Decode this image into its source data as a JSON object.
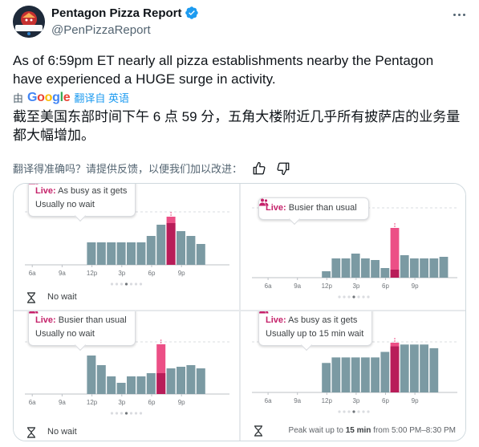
{
  "author": {
    "name": "Pentagon Pizza Report",
    "handle": "@PenPizzaReport",
    "verified": true,
    "avatar_text": "PENTAGON"
  },
  "tweet": {
    "text": "As of 6:59pm ET nearly all pizza establishments nearby the Pentagon have experienced a HUGE surge in activity.",
    "translated_by_prefix": "由",
    "translated_by_suffix": "翻译自 英语",
    "translation": "截至美国东部时间下午 6 点 59 分，五角大楼附近几乎所有披萨店的业务量都大幅增加。",
    "feedback": "翻译得准确吗？请提供反馈，以便我们加以改进："
  },
  "colors": {
    "bar": "#7b9aa3",
    "live": "#ec4f86",
    "live_dark": "#b81d59",
    "live_text": "#c5226a",
    "blue": "#1d9bf0"
  },
  "icons": [
    "more-icon",
    "verified-icon",
    "thumbs-up-icon",
    "thumbs-down-icon",
    "people-icon",
    "hourglass-icon"
  ],
  "panels": [
    {
      "id": "tl",
      "live_label": "Live:",
      "live_status": "As busy as it gets",
      "subtitle": "Usually no wait",
      "footer": "No wait",
      "peak": null,
      "time_labels": [
        "6a",
        "9a",
        "12p",
        "3p",
        "6p",
        "9p"
      ],
      "chart_data": {
        "type": "bar",
        "hours": [
          6,
          7,
          8,
          9,
          10,
          11,
          12,
          13,
          14,
          15,
          16,
          17,
          18,
          19,
          20,
          21,
          22,
          23
        ],
        "usual": [
          0,
          0,
          0,
          0,
          0,
          0,
          28,
          28,
          28,
          28,
          28,
          28,
          36,
          50,
          52,
          42,
          36,
          26
        ],
        "live_index": 14,
        "live_value": 60,
        "ylim": [
          0,
          100
        ]
      }
    },
    {
      "id": "tr",
      "live_label": "Live:",
      "live_status": "Busier than usual",
      "subtitle": "",
      "footer": "",
      "peak": null,
      "time_labels": [
        "6a",
        "9a",
        "12p",
        "3p",
        "6p",
        "9p"
      ],
      "chart_data": {
        "type": "bar",
        "hours": [
          6,
          7,
          8,
          9,
          10,
          11,
          12,
          13,
          14,
          15,
          16,
          17,
          18,
          19,
          20,
          21,
          22,
          23,
          0
        ],
        "usual": [
          0,
          0,
          0,
          0,
          0,
          0,
          8,
          24,
          24,
          30,
          24,
          22,
          12,
          10,
          28,
          24,
          24,
          24,
          26
        ],
        "live_index": 13,
        "live_value": 62,
        "ylim": [
          0,
          100
        ]
      }
    },
    {
      "id": "bl",
      "live_label": "Live:",
      "live_status": "Busier than usual",
      "subtitle": "Usually no wait",
      "footer": "No wait",
      "peak": null,
      "time_labels": [
        "6a",
        "9a",
        "12p",
        "3p",
        "6p",
        "9p"
      ],
      "chart_data": {
        "type": "bar",
        "hours": [
          6,
          7,
          8,
          9,
          10,
          11,
          12,
          13,
          14,
          15,
          16,
          17,
          18,
          19,
          20,
          21,
          22,
          23
        ],
        "usual": [
          0,
          0,
          0,
          0,
          0,
          0,
          48,
          36,
          22,
          14,
          22,
          22,
          26,
          26,
          32,
          34,
          36,
          32
        ],
        "live_index": 13,
        "live_value": 62,
        "ylim": [
          0,
          100
        ]
      }
    },
    {
      "id": "br",
      "live_label": "Live:",
      "live_status": "As busy as it gets",
      "subtitle": "Usually up to 15 min wait",
      "footer": "",
      "peak": {
        "prefix": "Peak wait up to",
        "value": "15 min",
        "suffix": "from 5:00 PM–8:30 PM"
      },
      "time_labels": [
        "6a",
        "9a",
        "12p",
        "3p",
        "6p",
        "9p"
      ],
      "chart_data": {
        "type": "bar",
        "hours": [
          6,
          7,
          8,
          9,
          10,
          11,
          12,
          13,
          14,
          15,
          16,
          17,
          18,
          19,
          20,
          21,
          22,
          23
        ],
        "usual": [
          0,
          0,
          0,
          0,
          0,
          0,
          32,
          38,
          38,
          38,
          38,
          38,
          44,
          50,
          52,
          52,
          52,
          48
        ],
        "live_index": 13,
        "live_value": 54,
        "ylim": [
          0,
          100
        ]
      }
    }
  ]
}
